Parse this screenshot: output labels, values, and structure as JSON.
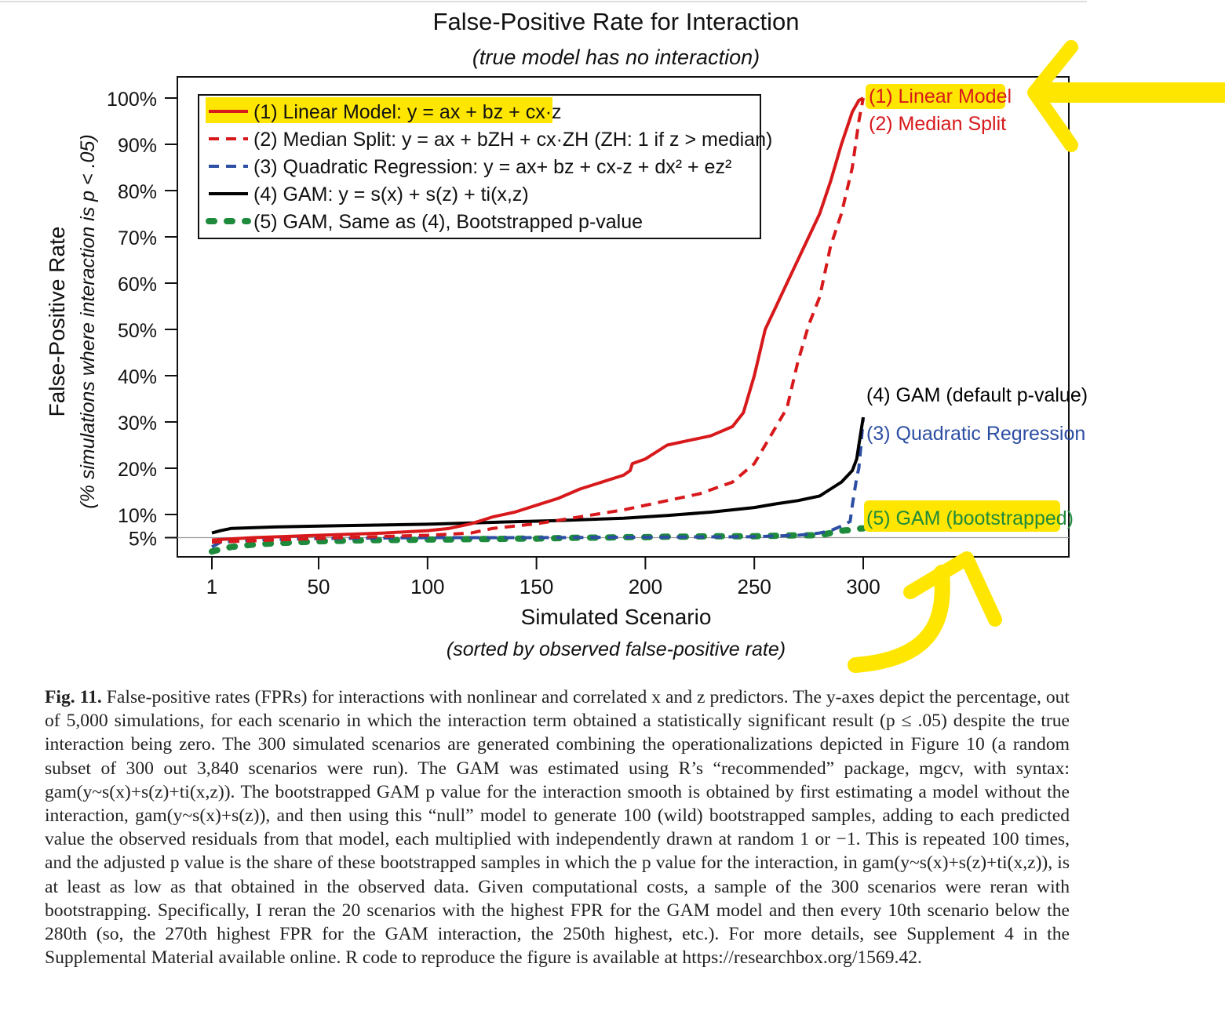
{
  "figure": {
    "title": "False-Positive Rate for Interaction",
    "subtitle": "(true model has no interaction)"
  },
  "chart_data": {
    "type": "line",
    "title": "False-Positive Rate for Interaction",
    "subtitle": "(true model has no interaction)",
    "xlabel": "Simulated Scenario",
    "xlabel_sub": "(sorted by observed false-positive rate)",
    "ylabel": "False-Positive Rate",
    "ylabel_sub": "(% simulations where interaction is p < .05)",
    "xlim": [
      1,
      300
    ],
    "ylim": [
      0,
      100
    ],
    "x_ticks": [
      1,
      50,
      100,
      150,
      200,
      250,
      300
    ],
    "y_ticks": [
      5,
      10,
      20,
      30,
      40,
      50,
      60,
      70,
      80,
      90,
      100
    ],
    "y_tick_labels": [
      "5%",
      "10%",
      "20%",
      "30%",
      "40%",
      "50%",
      "60%",
      "70%",
      "80%",
      "90%",
      "100%"
    ],
    "reference_line": 5,
    "grid": false,
    "legend_position": "top-left",
    "legend": [
      {
        "text": "(1) Linear Model: y = ax + bz + cx·z",
        "color": "#d7191c",
        "style": "solid",
        "highlighted": true
      },
      {
        "text": "(2) Median Split: y = ax + bZH + cx·ZH (ZH: 1 if z > median)",
        "color": "#d7191c",
        "style": "dashed"
      },
      {
        "text": "(3) Quadratic Regression: y = ax+ bz + cx-z + dx² + ez²",
        "color": "#2c4ea3",
        "style": "dashed"
      },
      {
        "text": "(4) GAM: y = s(x) + s(z) + ti(x,z)",
        "color": "#000000",
        "style": "solid"
      },
      {
        "text": "(5) GAM, Same as (4), Bootstrapped p-value",
        "color": "#1e8a3c",
        "style": "dotted"
      }
    ],
    "series": [
      {
        "name": "(1) Linear Model",
        "color": "#d7191c",
        "style": "solid",
        "x": [
          1,
          20,
          50,
          80,
          100,
          110,
          120,
          130,
          140,
          150,
          160,
          170,
          180,
          190,
          193,
          194,
          200,
          210,
          220,
          230,
          240,
          245,
          250,
          255,
          260,
          265,
          270,
          275,
          280,
          285,
          290,
          295,
          298,
          300
        ],
        "y": [
          4.5,
          5.0,
          5.5,
          6.0,
          6.5,
          7.0,
          8.0,
          9.5,
          10.5,
          12.0,
          13.5,
          15.5,
          17.0,
          18.5,
          19.5,
          21.0,
          22.0,
          25.0,
          26.0,
          27.0,
          29.0,
          32.0,
          40.0,
          50.0,
          55.0,
          60.0,
          65.0,
          70.0,
          75.0,
          82.0,
          90.0,
          97.0,
          99.5,
          100.0
        ]
      },
      {
        "name": "(2) Median Split",
        "color": "#d7191c",
        "style": "dashed",
        "x": [
          1,
          30,
          60,
          100,
          120,
          130,
          150,
          170,
          190,
          210,
          225,
          240,
          250,
          260,
          265,
          270,
          275,
          280,
          285,
          290,
          295,
          298,
          300
        ],
        "y": [
          4.0,
          4.5,
          5.0,
          5.5,
          6.0,
          7.0,
          8.0,
          9.5,
          11.0,
          13.0,
          14.5,
          17.0,
          21.0,
          29.0,
          33.0,
          43.0,
          51.0,
          57.0,
          68.0,
          75.0,
          85.0,
          95.0,
          100.0
        ]
      },
      {
        "name": "(3) Quadratic Regression",
        "color": "#2c4ea3",
        "style": "dashed",
        "x": [
          1,
          5,
          20,
          50,
          100,
          150,
          200,
          250,
          270,
          280,
          285,
          290,
          294,
          295,
          297,
          298,
          299,
          300
        ],
        "y": [
          3.0,
          4.0,
          4.5,
          4.8,
          5.0,
          5.0,
          5.1,
          5.2,
          5.5,
          6.0,
          6.5,
          7.5,
          8.5,
          12.0,
          18.0,
          20.0,
          25.0,
          31.0
        ]
      },
      {
        "name": "(4) GAM (default p-value)",
        "color": "#000000",
        "style": "solid",
        "x": [
          1,
          5,
          10,
          30,
          60,
          100,
          130,
          160,
          190,
          210,
          230,
          250,
          260,
          270,
          280,
          285,
          290,
          295,
          297,
          298,
          299,
          300
        ],
        "y": [
          6.0,
          6.5,
          7.0,
          7.3,
          7.6,
          7.9,
          8.3,
          8.7,
          9.2,
          9.8,
          10.5,
          11.5,
          12.3,
          13.0,
          14.0,
          15.5,
          17.0,
          19.5,
          22.0,
          25.0,
          28.0,
          31.0
        ]
      },
      {
        "name": "(5) GAM (bootstrapped)",
        "color": "#1e8a3c",
        "style": "dotted",
        "x": [
          1,
          5,
          10,
          20,
          30,
          40,
          50,
          60,
          70,
          80,
          90,
          100,
          110,
          120,
          130,
          140,
          150,
          160,
          170,
          180,
          190,
          200,
          210,
          220,
          230,
          240,
          250,
          260,
          270,
          280,
          281,
          282,
          283,
          284,
          285,
          286,
          287,
          288,
          289,
          290,
          291,
          292,
          293,
          294,
          295,
          296,
          297,
          298,
          299,
          300
        ],
        "y": [
          2.0,
          2.5,
          3.0,
          3.5,
          3.8,
          4.0,
          4.2,
          4.3,
          4.4,
          4.5,
          4.5,
          4.6,
          4.6,
          4.7,
          4.7,
          4.8,
          4.8,
          4.9,
          5.0,
          5.0,
          5.1,
          5.1,
          5.2,
          5.2,
          5.3,
          5.3,
          5.3,
          5.4,
          5.5,
          5.5,
          5.6,
          5.7,
          5.8,
          5.9,
          6.0,
          6.1,
          6.2,
          6.3,
          6.4,
          6.5,
          6.5,
          6.6,
          6.6,
          6.7,
          6.7,
          6.8,
          6.8,
          6.9,
          7.0,
          7.0
        ]
      }
    ],
    "end_labels": [
      {
        "text": "(1) Linear Model",
        "color": "#d7191c",
        "highlighted": true
      },
      {
        "text": "(2) Median Split",
        "color": "#d7191c"
      },
      {
        "text": "(4) GAM (default p-value)",
        "color": "#000000"
      },
      {
        "text": "(3) Quadratic Regression",
        "color": "#2c4ea3"
      },
      {
        "text": "(5) GAM (bootstrapped)",
        "color": "#1e8a3c",
        "highlighted": true
      }
    ],
    "highlight_color": "#ffe600"
  },
  "caption": {
    "label": "Fig. 11.",
    "text": "False-positive rates (FPRs) for interactions with nonlinear and correlated x and z predictors. The y-axes depict the percentage, out of 5,000 simulations, for each scenario in which the interaction term obtained a statistically significant result (p ≤ .05) despite the true interaction being zero. The 300 simulated scenarios are generated combining the operationalizations depicted in Figure 10 (a random subset of 300 out 3,840 scenarios were run). The GAM was estimated using R’s “recommended” package, mgcv, with syntax: gam(y~s(x)+s(z)+ti(x,z)). The bootstrapped GAM p value for the interaction smooth is obtained by first estimating a model without the interaction, gam(y~s(x)+s(z)), and then using this “null” model to generate 100 (wild) bootstrapped samples, adding to each predicted value the observed residuals from that model, each multiplied with independently drawn at random 1 or −1. This is repeated 100 times, and the adjusted p value is the share of these bootstrapped samples in which the p value for the interaction, in gam(y~s(x)+s(z)+ti(x,z)), is at least as low as that obtained in the observed data. Given computational costs, a sample of the 300 scenarios were reran with bootstrapping. Specifically, I reran the 20 scenarios with the highest FPR for the GAM model and then every 10th scenario below the 280th (so, the 270th highest FPR for the GAM interaction, the 250th highest, etc.). For more details, see Supplement 4 in the Supplemental Material available online. R code to reproduce the figure is available at https://researchbox.org/1569.42."
  }
}
